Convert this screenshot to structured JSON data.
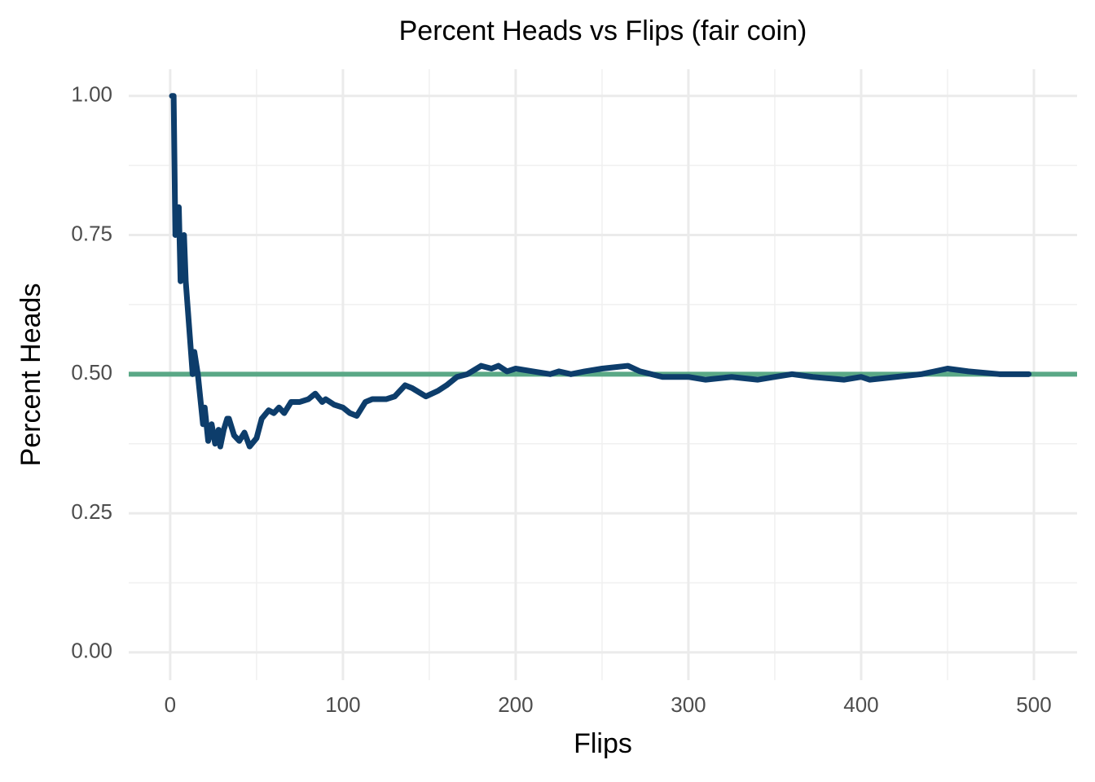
{
  "chart_data": {
    "type": "line",
    "title": "Percent Heads vs Flips (fair coin)",
    "x_label": "Flips",
    "y_label": "Percent Heads",
    "xlim": [
      -24,
      525
    ],
    "ylim": [
      -0.05,
      1.048
    ],
    "xticks": [
      0,
      100,
      200,
      300,
      400,
      500
    ],
    "yticks": [
      {
        "value": 0,
        "label": "0.00"
      },
      {
        "value": 0.25,
        "label": "0.25"
      },
      {
        "value": 0.5,
        "label": "0.50"
      },
      {
        "value": 0.75,
        "label": "0.75"
      },
      {
        "value": 1,
        "label": "1.00"
      }
    ],
    "xminor": [
      50,
      150,
      250,
      350,
      450
    ],
    "yminor": [
      0.125,
      0.375,
      0.625,
      0.875
    ],
    "grid": true,
    "hline": {
      "value": 0.5,
      "color": "#5aa886"
    },
    "series": [
      {
        "color": "#0d3d6b",
        "x": [
          1,
          2,
          3,
          5,
          6,
          8,
          9,
          13,
          14,
          16,
          18,
          19,
          20,
          22,
          24,
          26,
          28,
          29,
          31,
          33,
          34,
          37,
          40,
          43,
          46,
          50,
          53,
          57,
          60,
          63,
          66,
          70,
          75,
          80,
          84,
          88,
          90,
          95,
          100,
          104,
          108,
          113,
          117,
          125,
          130,
          136,
          140,
          148,
          155,
          160,
          166,
          172,
          180,
          186,
          190,
          195,
          200,
          210,
          220,
          225,
          232,
          240,
          250,
          265,
          272,
          285,
          300,
          310,
          325,
          340,
          350,
          360,
          372,
          390,
          400,
          405,
          420,
          435,
          450,
          462,
          480,
          497
        ],
        "values": [
          1.0,
          1.0,
          0.75,
          0.8,
          0.667,
          0.75,
          0.667,
          0.5,
          0.54,
          0.5,
          0.44,
          0.41,
          0.44,
          0.38,
          0.41,
          0.375,
          0.4,
          0.37,
          0.4,
          0.42,
          0.42,
          0.39,
          0.38,
          0.395,
          0.37,
          0.385,
          0.42,
          0.435,
          0.43,
          0.44,
          0.43,
          0.45,
          0.45,
          0.455,
          0.465,
          0.45,
          0.455,
          0.445,
          0.44,
          0.43,
          0.425,
          0.45,
          0.455,
          0.455,
          0.46,
          0.48,
          0.475,
          0.46,
          0.47,
          0.48,
          0.495,
          0.5,
          0.515,
          0.51,
          0.515,
          0.505,
          0.51,
          0.505,
          0.5,
          0.505,
          0.5,
          0.505,
          0.51,
          0.515,
          0.505,
          0.495,
          0.495,
          0.49,
          0.495,
          0.49,
          0.495,
          0.5,
          0.495,
          0.49,
          0.495,
          0.49,
          0.495,
          0.5,
          0.51,
          0.505,
          0.5,
          0.5
        ]
      }
    ]
  }
}
